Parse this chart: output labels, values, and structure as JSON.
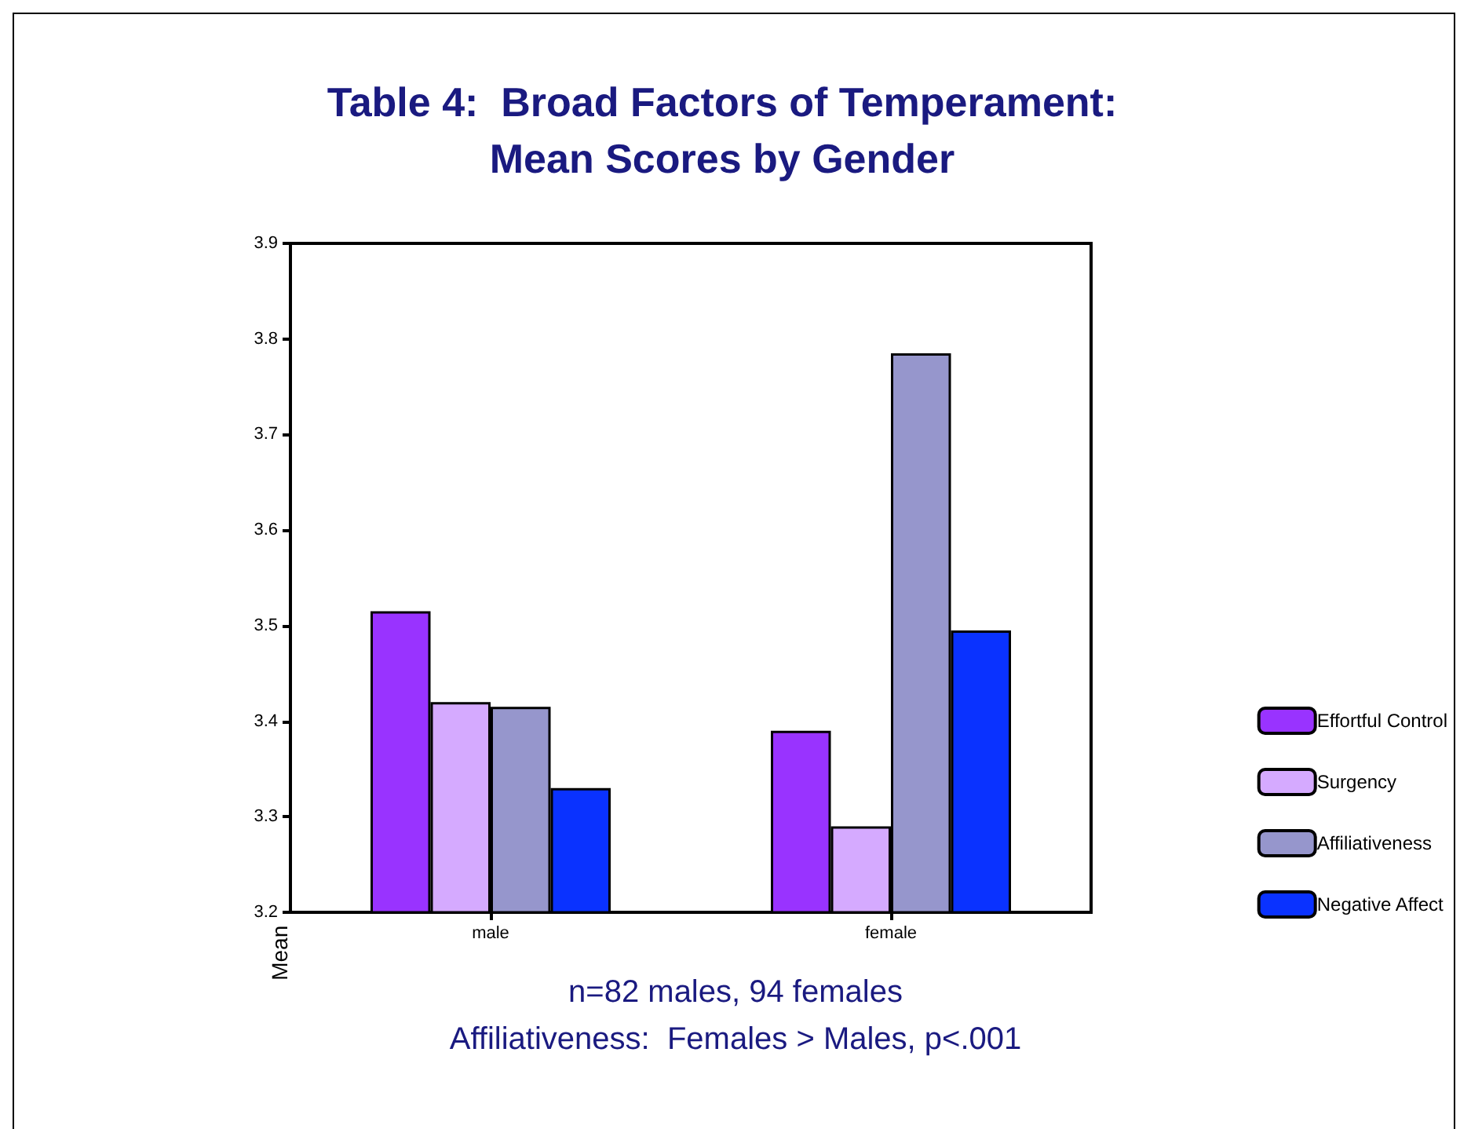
{
  "chart_data": {
    "type": "bar",
    "title": "Table 4:  Broad Factors of Temperament:\nMean Scores by Gender",
    "ylabel": "Mean",
    "categories": [
      "male",
      "female"
    ],
    "series": [
      {
        "name": "Effortful Control",
        "color": "#9933ff",
        "values": [
          3.515,
          3.39
        ]
      },
      {
        "name": "Surgency",
        "color": "#d5aaff",
        "values": [
          3.42,
          3.29
        ]
      },
      {
        "name": "Affiliativeness",
        "color": "#9696cc",
        "values": [
          3.415,
          3.785
        ]
      },
      {
        "name": "Negative Affect",
        "color": "#0a32ff",
        "values": [
          3.33,
          3.495
        ]
      }
    ],
    "ylim": [
      3.2,
      3.9
    ],
    "yticks": [
      3.2,
      3.3,
      3.4,
      3.5,
      3.6,
      3.7,
      3.8,
      3.9
    ],
    "grid": false,
    "legend": "right",
    "annotations": [
      "n=82 males, 94 females",
      "Affiliativeness:  Females > Males, p<.001"
    ]
  }
}
